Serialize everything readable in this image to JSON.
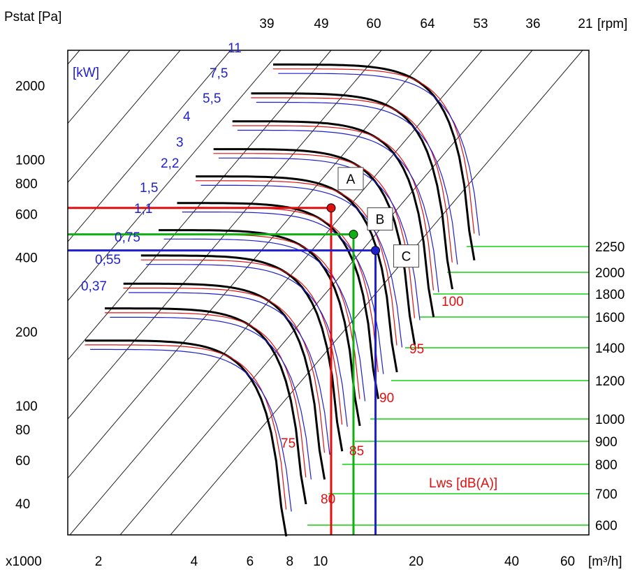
{
  "chart_data": {
    "type": "line",
    "title": "",
    "ylabel": "Pstat [Pa]",
    "xlabel": "[m³/h]",
    "x_multiplier": "x1000",
    "x_scale": "log",
    "y_scale": "log",
    "xlim": [
      1.6,
      70
    ],
    "ylim": [
      30,
      2800
    ],
    "x_ticks": [
      {
        "v": 2,
        "label": "2"
      },
      {
        "v": 4,
        "label": "4"
      },
      {
        "v": 6,
        "label": "6"
      },
      {
        "v": 8,
        "label": "8"
      },
      {
        "v": 10,
        "label": "10"
      },
      {
        "v": 20,
        "label": "20"
      },
      {
        "v": 40,
        "label": "40"
      },
      {
        "v": 60,
        "label": "60"
      }
    ],
    "y_ticks": [
      {
        "v": 40,
        "label": "40"
      },
      {
        "v": 60,
        "label": "60"
      },
      {
        "v": 80,
        "label": "80"
      },
      {
        "v": 100,
        "label": "100"
      },
      {
        "v": 200,
        "label": "200"
      },
      {
        "v": 400,
        "label": "400"
      },
      {
        "v": 600,
        "label": "600"
      },
      {
        "v": 800,
        "label": "800"
      },
      {
        "v": 1000,
        "label": "1000"
      },
      {
        "v": 2000,
        "label": "2000"
      }
    ],
    "rpm_unit": "[rpm]",
    "rpm_labels": [
      "39",
      "49",
      "60",
      "64",
      "53",
      "36",
      "21"
    ],
    "power_unit": "[kW]",
    "power_labels": [
      "11",
      "7,5",
      "5,5",
      "4",
      "3",
      "2,2",
      "1,5",
      "1,1",
      "0,75",
      "0,55",
      "0,37"
    ],
    "noise_unit": "Lws [dB(A)]",
    "noise_labels": [
      "75",
      "80",
      "85",
      "90",
      "95",
      "100"
    ],
    "right_scale": [
      "2250",
      "2000",
      "1800",
      "1600",
      "1400",
      "1200",
      "1000",
      "900",
      "800",
      "700",
      "600"
    ],
    "fan_curves": [
      {
        "q_max": 7.8,
        "p_max": 185
      },
      {
        "q_max": 9.0,
        "p_max": 250
      },
      {
        "q_max": 10.3,
        "p_max": 315
      },
      {
        "q_max": 11.7,
        "p_max": 410
      },
      {
        "q_max": 13.3,
        "p_max": 520
      },
      {
        "q_max": 15.2,
        "p_max": 670
      },
      {
        "q_max": 17.4,
        "p_max": 860
      },
      {
        "q_max": 19.8,
        "p_max": 1110
      },
      {
        "q_max": 22.7,
        "p_max": 1440
      },
      {
        "q_max": 26.0,
        "p_max": 1870
      },
      {
        "q_max": 30.5,
        "p_max": 2450
      }
    ],
    "operating_points": [
      {
        "label": "A",
        "q": 10.8,
        "p": 640,
        "color": "#e01010"
      },
      {
        "label": "B",
        "q": 12.7,
        "p": 500,
        "color": "#10b010"
      },
      {
        "label": "C",
        "q": 14.9,
        "p": 430,
        "color": "#1f1fd0"
      }
    ],
    "colors": {
      "axis": "#000000",
      "power": "#1f1fd0",
      "noise": "#e01010",
      "scale": "#10b010"
    }
  }
}
